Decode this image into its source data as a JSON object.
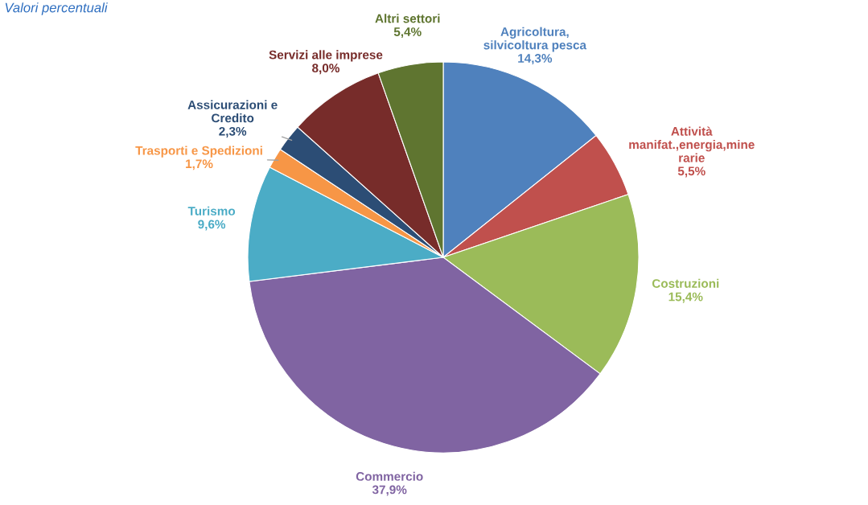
{
  "chart_data": {
    "type": "pie",
    "title": "Valori percentuali",
    "categories": [
      "Agricoltura,\nsilvicoltura pesca",
      "Attività\nmanifat.,energia,mine\nrarie",
      "Costruzioni",
      "Commercio",
      "Turismo",
      "Trasporti e Spedizioni",
      "Assicurazioni e\nCredito",
      "Servizi alle imprese",
      "Altri settori"
    ],
    "values": [
      14.3,
      5.5,
      15.4,
      37.9,
      9.6,
      1.7,
      2.3,
      8.0,
      5.4
    ],
    "value_labels": [
      "14,3%",
      "5,5%",
      "15,4%",
      "37,9%",
      "9,6%",
      "1,7%",
      "2,3%",
      "8,0%",
      "5,4%"
    ],
    "colors": [
      "#4f81bd",
      "#c0504d",
      "#9bbb59",
      "#8064a2",
      "#4bacc6",
      "#f79646",
      "#2c4d75",
      "#772c2a",
      "#5f7530"
    ],
    "legend": false
  }
}
